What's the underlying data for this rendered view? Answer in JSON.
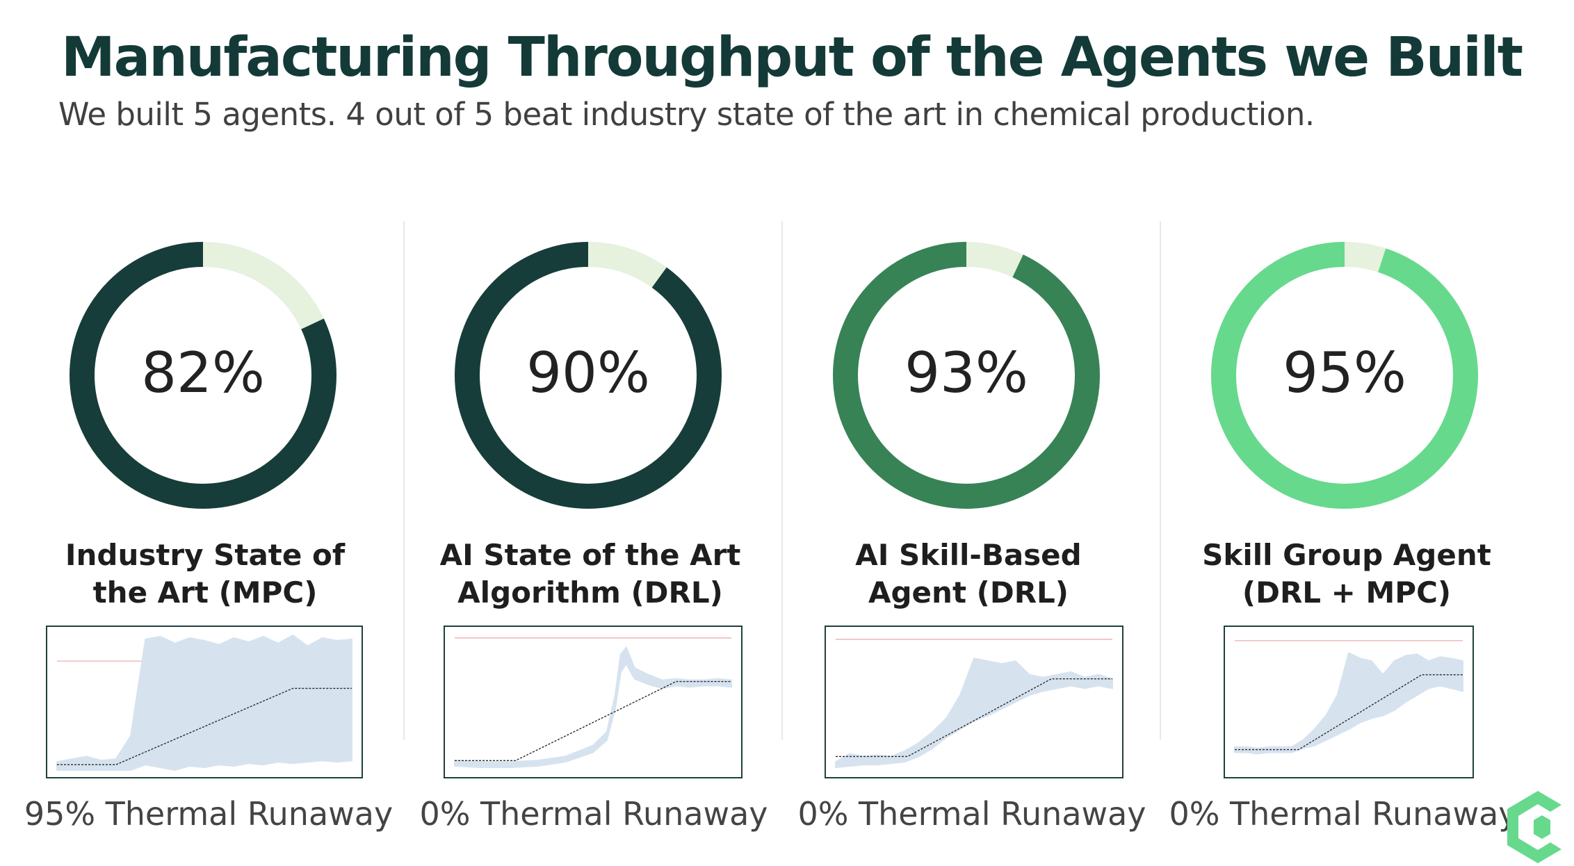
{
  "header": {
    "title": "Manufacturing Throughput of the Agents we Built",
    "subtitle": "We built 5 agents. 4 out of 5 beat industry state of the art in chemical production."
  },
  "chart_data": [
    {
      "type": "pie",
      "name_lines": [
        "Industry State of",
        "the Art (MPC)"
      ],
      "value": 82,
      "label": "82%",
      "remainder": 18,
      "color": "#173d3a",
      "remainder_color": "#e6f1de",
      "thermal_runaway": "95% Thermal Runaway"
    },
    {
      "type": "pie",
      "name_lines": [
        "AI State of the Art",
        "Algorithm (DRL)"
      ],
      "value": 90,
      "label": "90%",
      "remainder": 10,
      "color": "#173d3a",
      "remainder_color": "#e6f1de",
      "thermal_runaway": "0% Thermal Runaway"
    },
    {
      "type": "pie",
      "name_lines": [
        "AI Skill-Based",
        "Agent (DRL)"
      ],
      "value": 93,
      "label": "93%",
      "remainder": 7,
      "color": "#378356",
      "remainder_color": "#e6f1de",
      "thermal_runaway": "0% Thermal Runaway"
    },
    {
      "type": "pie",
      "name_lines": [
        "Skill Group Agent",
        "(DRL + MPC)"
      ],
      "value": 95,
      "label": "95%",
      "remainder": 5,
      "color": "#66d98d",
      "remainder_color": "#e6f1de",
      "thermal_runaway": "0% Thermal Runaway"
    }
  ],
  "mini_plots": [
    {
      "type": "area",
      "x": [
        0,
        0.05,
        0.1,
        0.15,
        0.2,
        0.25,
        0.3,
        0.35,
        0.4,
        0.45,
        0.5,
        0.55,
        0.6,
        0.65,
        0.7,
        0.75,
        0.8,
        0.85,
        0.9,
        0.95,
        1
      ],
      "upper": [
        0.06,
        0.08,
        0.1,
        0.07,
        0.08,
        0.25,
        0.96,
        0.98,
        0.93,
        0.97,
        0.95,
        0.92,
        0.97,
        0.94,
        0.98,
        0.93,
        0.99,
        0.91,
        0.97,
        0.95,
        0.96
      ],
      "lower": [
        0.0,
        0.0,
        0.0,
        0.0,
        0.0,
        0.0,
        0.04,
        0.02,
        0.0,
        0.03,
        0.02,
        0.04,
        0.03,
        0.05,
        0.04,
        0.06,
        0.05,
        0.06,
        0.07,
        0.06,
        0.07
      ],
      "setpoint": [
        [
          0,
          0.04
        ],
        [
          0.2,
          0.04
        ],
        [
          0.8,
          0.6
        ],
        [
          1,
          0.6
        ]
      ],
      "limit": 0.8,
      "series_color": "#d6e3ef"
    },
    {
      "type": "area",
      "x": [
        0,
        0.1,
        0.2,
        0.3,
        0.4,
        0.5,
        0.55,
        0.58,
        0.6,
        0.62,
        0.65,
        0.7,
        0.75,
        0.8,
        0.85,
        0.9,
        0.95,
        1
      ],
      "upper": [
        0.07,
        0.06,
        0.06,
        0.07,
        0.1,
        0.18,
        0.28,
        0.55,
        0.85,
        0.9,
        0.75,
        0.7,
        0.66,
        0.67,
        0.66,
        0.66,
        0.67,
        0.66
      ],
      "lower": [
        0.03,
        0.02,
        0.02,
        0.03,
        0.06,
        0.13,
        0.22,
        0.45,
        0.72,
        0.78,
        0.67,
        0.63,
        0.6,
        0.62,
        0.61,
        0.62,
        0.62,
        0.61
      ],
      "setpoint": [
        [
          0,
          0.07
        ],
        [
          0.22,
          0.07
        ],
        [
          0.8,
          0.65
        ],
        [
          1,
          0.65
        ]
      ],
      "limit": 0.97,
      "series_color": "#d6e3ef"
    },
    {
      "type": "area",
      "x": [
        0,
        0.05,
        0.1,
        0.15,
        0.2,
        0.25,
        0.3,
        0.35,
        0.4,
        0.45,
        0.5,
        0.55,
        0.6,
        0.65,
        0.7,
        0.75,
        0.8,
        0.85,
        0.9,
        0.95,
        1
      ],
      "upper": [
        0.06,
        0.12,
        0.1,
        0.11,
        0.1,
        0.14,
        0.2,
        0.28,
        0.38,
        0.55,
        0.82,
        0.8,
        0.78,
        0.8,
        0.7,
        0.68,
        0.7,
        0.72,
        0.68,
        0.7,
        0.67
      ],
      "lower": [
        0.02,
        0.03,
        0.04,
        0.04,
        0.05,
        0.06,
        0.1,
        0.16,
        0.24,
        0.3,
        0.36,
        0.4,
        0.45,
        0.5,
        0.55,
        0.58,
        0.6,
        0.62,
        0.6,
        0.62,
        0.6
      ],
      "setpoint": [
        [
          0,
          0.1
        ],
        [
          0.26,
          0.1
        ],
        [
          0.78,
          0.67
        ],
        [
          1,
          0.67
        ]
      ],
      "limit": 0.96,
      "series_color": "#d6e3ef"
    },
    {
      "type": "area",
      "x": [
        0,
        0.05,
        0.1,
        0.15,
        0.2,
        0.25,
        0.3,
        0.35,
        0.4,
        0.45,
        0.5,
        0.55,
        0.6,
        0.65,
        0.7,
        0.75,
        0.8,
        0.85,
        0.9,
        0.95,
        1
      ],
      "upper": [
        0.17,
        0.17,
        0.16,
        0.17,
        0.17,
        0.17,
        0.22,
        0.3,
        0.4,
        0.55,
        0.86,
        0.82,
        0.8,
        0.7,
        0.8,
        0.84,
        0.85,
        0.8,
        0.83,
        0.82,
        0.8
      ],
      "lower": [
        0.13,
        0.13,
        0.12,
        0.13,
        0.13,
        0.13,
        0.16,
        0.18,
        0.22,
        0.26,
        0.3,
        0.35,
        0.38,
        0.4,
        0.44,
        0.5,
        0.55,
        0.6,
        0.62,
        0.6,
        0.58
      ],
      "setpoint": [
        [
          0,
          0.15
        ],
        [
          0.28,
          0.15
        ],
        [
          0.82,
          0.7
        ],
        [
          1,
          0.7
        ]
      ],
      "limit": 0.95,
      "series_color": "#d6e3ef"
    }
  ],
  "colors": {
    "title": "#143a38",
    "setpoint_line": "#2a2a2a",
    "limit_line": "#e8a6a6",
    "logo": "#66d98d"
  },
  "logo": {
    "icon": "hexagon-c-logo-icon"
  }
}
